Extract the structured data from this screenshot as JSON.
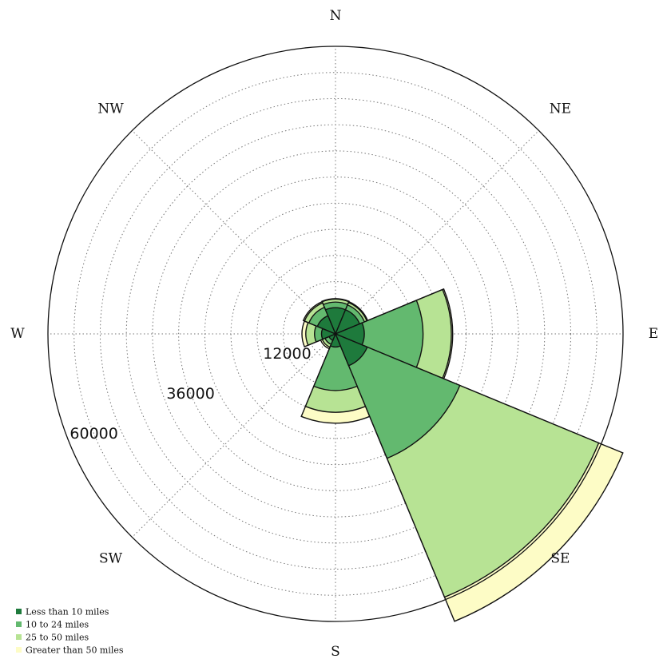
{
  "chart_data": {
    "type": "polar-stacked-bar",
    "directions": [
      "N",
      "NE",
      "E",
      "SE",
      "S",
      "SW",
      "W",
      "NW"
    ],
    "rlim": [
      0,
      66000
    ],
    "r_ticks": [
      {
        "value": 12000,
        "label": "12000"
      },
      {
        "value": 36000,
        "label": "36000"
      },
      {
        "value": 60000,
        "label": "60000"
      }
    ],
    "grid": true,
    "legend_position": "bottom-left",
    "series": [
      {
        "name": "Less than 10 miles",
        "color": "#1e7a3c",
        "values": [
          6000,
          6000,
          6600,
          7900,
          3000,
          1600,
          3200,
          4500
        ]
      },
      {
        "name": "10 to 24 miles",
        "color": "#63b96f",
        "values": [
          1300,
          1200,
          13500,
          23000,
          10000,
          1000,
          1600,
          2100
        ]
      },
      {
        "name": "25 to 50 miles",
        "color": "#b7e394",
        "values": [
          700,
          600,
          6500,
          34500,
          5000,
          700,
          2000,
          1100
        ]
      },
      {
        "name": "Greater than 50 miles",
        "color": "#fdfcc6",
        "values": [
          100,
          200,
          300,
          6000,
          2500,
          400,
          900,
          300
        ]
      }
    ]
  }
}
